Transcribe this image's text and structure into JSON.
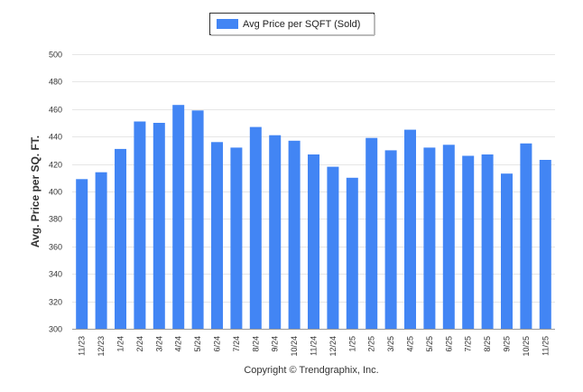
{
  "chart_data": {
    "type": "bar",
    "title": "",
    "xlabel": "",
    "ylabel": "Avg. Price per SQ. FT.",
    "ylim": [
      300,
      500
    ],
    "yticks": [
      300,
      320,
      340,
      360,
      380,
      400,
      420,
      440,
      460,
      480,
      500
    ],
    "grid": true,
    "legend_position": "top-center",
    "categories": [
      "11/23",
      "12/23",
      "1/24",
      "2/24",
      "3/24",
      "4/24",
      "5/24",
      "6/24",
      "7/24",
      "8/24",
      "9/24",
      "10/24",
      "11/24",
      "12/24",
      "1/25",
      "2/25",
      "3/25",
      "4/25",
      "5/25",
      "6/25",
      "7/25",
      "8/25",
      "9/25",
      "10/25",
      "11/25"
    ],
    "series": [
      {
        "name": "Avg Price per SQFT (Sold)",
        "color": "#4285f4",
        "values": [
          409,
          414,
          431,
          451,
          450,
          463,
          459,
          436,
          432,
          447,
          441,
          437,
          427,
          418,
          410,
          439,
          430,
          445,
          432,
          434,
          426,
          427,
          413,
          435,
          423
        ]
      }
    ]
  },
  "footer": {
    "copyright": "Copyright © Trendgraphix, Inc."
  }
}
